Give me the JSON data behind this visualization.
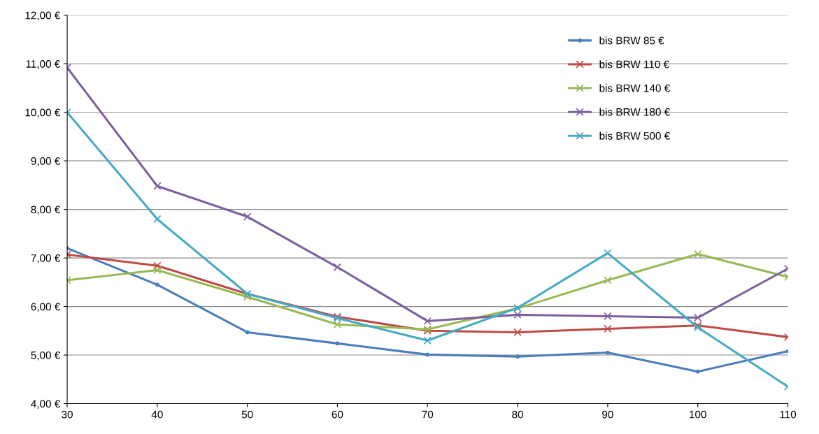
{
  "chart_data": {
    "type": "line",
    "x": [
      30,
      40,
      50,
      60,
      70,
      80,
      90,
      100,
      110
    ],
    "xlim": [
      30,
      110
    ],
    "xticks": [
      30,
      40,
      50,
      60,
      70,
      80,
      90,
      100,
      110
    ],
    "ylim": [
      4,
      12
    ],
    "yticks": [
      {
        "value": 4,
        "label": "4,00 €"
      },
      {
        "value": 5,
        "label": "5,00 €"
      },
      {
        "value": 6,
        "label": "6,00 €"
      },
      {
        "value": 7,
        "label": "7,00 €"
      },
      {
        "value": 8,
        "label": "8,00 €"
      },
      {
        "value": 9,
        "label": "9,00 €"
      },
      {
        "value": 10,
        "label": "10,00 €"
      },
      {
        "value": 11,
        "label": "11,00 €"
      },
      {
        "value": 12,
        "label": "12,00 €"
      }
    ],
    "grid": "y",
    "legend": "top right",
    "series": [
      {
        "name": "bis BRW 85 €",
        "color": "#4a7ebb",
        "marker": "circle",
        "values": [
          7.2,
          6.45,
          5.47,
          5.24,
          5.01,
          4.97,
          5.05,
          4.66,
          5.08
        ]
      },
      {
        "name": "bis BRW 110 €",
        "color": "#be4b48",
        "marker": "cross",
        "values": [
          7.07,
          6.84,
          6.26,
          5.79,
          5.5,
          5.47,
          5.54,
          5.61,
          5.37
        ]
      },
      {
        "name": "bis BRW 140 €",
        "color": "#98b954",
        "marker": "cross",
        "values": [
          6.54,
          6.75,
          6.2,
          5.63,
          5.53,
          5.96,
          6.54,
          7.08,
          6.61
        ]
      },
      {
        "name": "bis BRW 180 €",
        "color": "#7d60a0",
        "marker": "cross",
        "values": [
          10.92,
          8.48,
          7.85,
          6.81,
          5.7,
          5.83,
          5.8,
          5.77,
          6.78
        ]
      },
      {
        "name": "bis BRW 500 €",
        "color": "#46aac5",
        "marker": "cross",
        "values": [
          10.0,
          7.8,
          6.26,
          5.76,
          5.3,
          5.97,
          7.1,
          5.57,
          4.35
        ]
      }
    ]
  }
}
